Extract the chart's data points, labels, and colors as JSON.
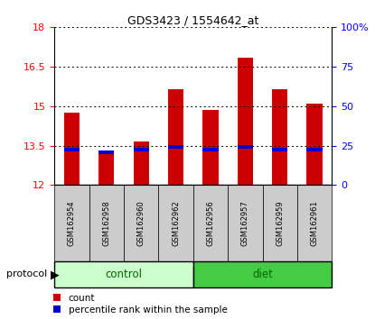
{
  "title": "GDS3423 / 1554642_at",
  "samples": [
    "GSM162954",
    "GSM162958",
    "GSM162960",
    "GSM162962",
    "GSM162956",
    "GSM162957",
    "GSM162959",
    "GSM162961"
  ],
  "count_values": [
    14.75,
    13.3,
    13.65,
    15.65,
    14.85,
    16.85,
    15.65,
    15.1
  ],
  "percentile_values": [
    13.35,
    13.25,
    13.35,
    13.45,
    13.35,
    13.45,
    13.35,
    13.35
  ],
  "ylim_left": [
    12,
    18
  ],
  "yticks_left": [
    12,
    13.5,
    15,
    16.5,
    18
  ],
  "ylim_right": [
    0,
    100
  ],
  "yticks_right": [
    0,
    25,
    50,
    75,
    100
  ],
  "bar_color": "#cc0000",
  "percentile_color": "#0000cc",
  "bar_width": 0.45,
  "control_group_color": "#ccffcc",
  "diet_group_color": "#44cc44",
  "group_label_color": "#006600",
  "tick_label_bg": "#cccccc",
  "background_color": "#ffffff"
}
